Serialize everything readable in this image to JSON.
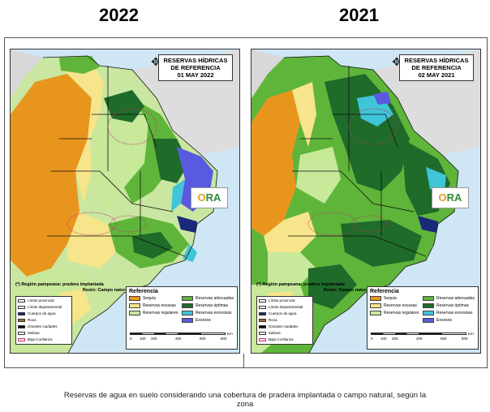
{
  "years": {
    "left": "2022",
    "right": "2021"
  },
  "maps": [
    {
      "title_line1": "RESERVAS HÍDRICAS",
      "title_line2": "DE REFERENCIA",
      "title_line3": "01 MAY 2022"
    },
    {
      "title_line1": "RESERVAS HÍDRICAS",
      "title_line2": "DE REFERENCIA",
      "title_line3": "02 MAY 2021"
    }
  ],
  "logo_text": "ORA",
  "note": {
    "line1": "(*) Región pampeana: pradera implantada",
    "line2": "Resto: Campo natural"
  },
  "left_legend": [
    {
      "label": "Límite provincial",
      "color": "#ffffff"
    },
    {
      "label": "Límite departamental",
      "color": "#ffffff"
    },
    {
      "label": "Cuerpos de agua",
      "color": "#1a2a7a"
    },
    {
      "label": "Roca",
      "color": "#a0702a"
    },
    {
      "label": "Grandes ciudades",
      "color": "#111111"
    },
    {
      "label": "Salinas",
      "color": "#ffffff"
    },
    {
      "label": "Baja Confianza",
      "color": "#ffe6f0"
    }
  ],
  "reference": {
    "heading": "Referencia",
    "items": [
      {
        "label": "Sequía",
        "color": "#e8951e"
      },
      {
        "label": "Reservas adecuadas",
        "color": "#5fb53a"
      },
      {
        "label": "Reservas escasas",
        "color": "#f6e58a"
      },
      {
        "label": "Reservas óptimas",
        "color": "#1e6b2a"
      },
      {
        "label": "Reservas regulares",
        "color": "#c8e89a"
      },
      {
        "label": "Reservas excesivas",
        "color": "#3fc4d8"
      },
      {
        "label": "",
        "color": "#ffffff"
      },
      {
        "label": "Excesos",
        "color": "#5a5ae0"
      }
    ]
  },
  "scale": {
    "ticks": [
      "0",
      "100",
      "200",
      "400",
      "600",
      "800"
    ],
    "unit": "Km"
  },
  "caption": {
    "line1": "Reservas de agua en suelo considerando una cobertura de pradera implantada o campo natural, según la",
    "line2": "zona"
  }
}
